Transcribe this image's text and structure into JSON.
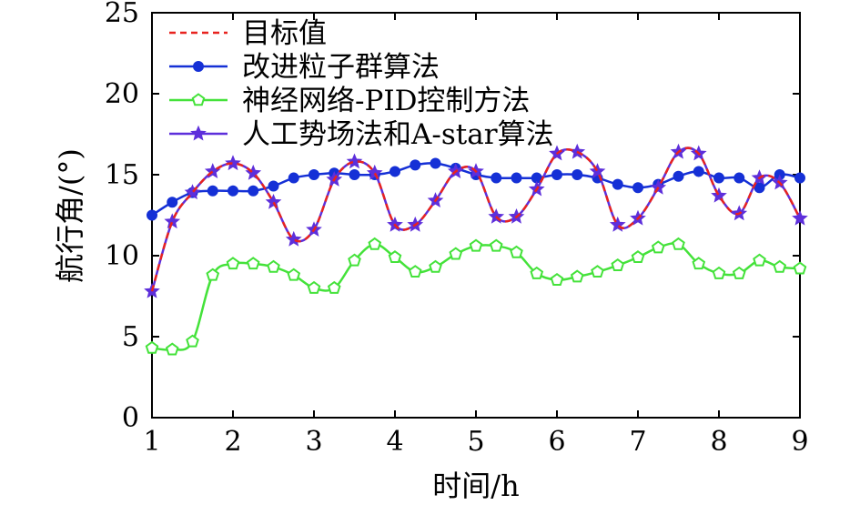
{
  "chart_data": {
    "type": "line",
    "xlabel": "时间/h",
    "ylabel": "航行角/(°)",
    "xlim": [
      1,
      9
    ],
    "ylim": [
      0,
      25
    ],
    "xticks": [
      1,
      2,
      3,
      4,
      5,
      6,
      7,
      8,
      9
    ],
    "yticks": [
      0,
      5,
      10,
      15,
      20,
      25
    ],
    "grid": false,
    "legend_position": "top-left",
    "series": [
      {
        "name": "目标值",
        "color": "#e8231f",
        "line_style": "dashed",
        "marker": "none",
        "x": [
          1.0,
          1.25,
          1.5,
          1.75,
          2.0,
          2.25,
          2.5,
          2.75,
          3.0,
          3.25,
          3.5,
          3.75,
          4.0,
          4.25,
          4.5,
          4.75,
          5.0,
          5.25,
          5.5,
          5.75,
          6.0,
          6.25,
          6.5,
          6.75,
          7.0,
          7.25,
          7.5,
          7.75,
          8.0,
          8.25,
          8.5,
          8.75,
          9.0
        ],
        "y": [
          7.8,
          12.1,
          13.9,
          15.2,
          15.7,
          15.1,
          13.3,
          11.0,
          11.6,
          14.7,
          15.8,
          15.1,
          11.9,
          11.9,
          13.4,
          15.2,
          15.2,
          12.4,
          12.4,
          14.1,
          16.3,
          16.4,
          15.2,
          11.9,
          12.3,
          14.2,
          16.4,
          16.3,
          13.7,
          12.6,
          14.8,
          14.5,
          12.3
        ]
      },
      {
        "name": "改进粒子群算法",
        "color": "#1530d6",
        "line_style": "solid",
        "marker": "filled-circle",
        "x": [
          1.0,
          1.25,
          1.5,
          1.75,
          2.0,
          2.25,
          2.5,
          2.75,
          3.0,
          3.25,
          3.5,
          3.75,
          4.0,
          4.25,
          4.5,
          4.75,
          5.0,
          5.25,
          5.5,
          5.75,
          6.0,
          6.25,
          6.5,
          6.75,
          7.0,
          7.25,
          7.5,
          7.75,
          8.0,
          8.25,
          8.5,
          8.75,
          9.0
        ],
        "y": [
          12.5,
          13.3,
          13.9,
          14.0,
          14.0,
          14.0,
          14.3,
          14.8,
          15.0,
          15.1,
          15.0,
          15.0,
          15.2,
          15.6,
          15.7,
          15.4,
          15.0,
          14.8,
          14.8,
          14.8,
          15.0,
          15.0,
          14.8,
          14.4,
          14.2,
          14.4,
          14.9,
          15.2,
          14.8,
          14.8,
          14.2,
          15.0,
          14.8
        ]
      },
      {
        "name": "神经网络-PID控制方法",
        "color": "#44e23a",
        "line_style": "solid",
        "marker": "hollow-pentagon",
        "x": [
          1.0,
          1.25,
          1.5,
          1.75,
          2.0,
          2.25,
          2.5,
          2.75,
          3.0,
          3.25,
          3.5,
          3.75,
          4.0,
          4.25,
          4.5,
          4.75,
          5.0,
          5.25,
          5.5,
          5.75,
          6.0,
          6.25,
          6.5,
          6.75,
          7.0,
          7.25,
          7.5,
          7.75,
          8.0,
          8.25,
          8.5,
          8.75,
          9.0
        ],
        "y": [
          4.3,
          4.2,
          4.7,
          8.8,
          9.5,
          9.5,
          9.3,
          8.8,
          8.0,
          8.0,
          9.7,
          10.7,
          9.9,
          9.0,
          9.3,
          10.1,
          10.6,
          10.6,
          10.2,
          8.9,
          8.5,
          8.7,
          9.0,
          9.4,
          9.9,
          10.5,
          10.7,
          9.5,
          8.9,
          8.9,
          9.7,
          9.3,
          9.2
        ]
      },
      {
        "name": "人工势场法和A-star算法",
        "color": "#5d2fdb",
        "line_style": "solid",
        "marker": "star",
        "x": [
          1.0,
          1.25,
          1.5,
          1.75,
          2.0,
          2.25,
          2.5,
          2.75,
          3.0,
          3.25,
          3.5,
          3.75,
          4.0,
          4.25,
          4.5,
          4.75,
          5.0,
          5.25,
          5.5,
          5.75,
          6.0,
          6.25,
          6.5,
          6.75,
          7.0,
          7.25,
          7.5,
          7.75,
          8.0,
          8.25,
          8.5,
          8.75,
          9.0
        ],
        "y": [
          7.8,
          12.1,
          13.9,
          15.2,
          15.7,
          15.1,
          13.3,
          11.0,
          11.6,
          14.7,
          15.8,
          15.1,
          11.9,
          11.9,
          13.4,
          15.2,
          15.2,
          12.4,
          12.4,
          14.1,
          16.3,
          16.4,
          15.2,
          11.9,
          12.3,
          14.2,
          16.4,
          16.3,
          13.7,
          12.6,
          14.8,
          14.5,
          12.3
        ]
      }
    ]
  }
}
